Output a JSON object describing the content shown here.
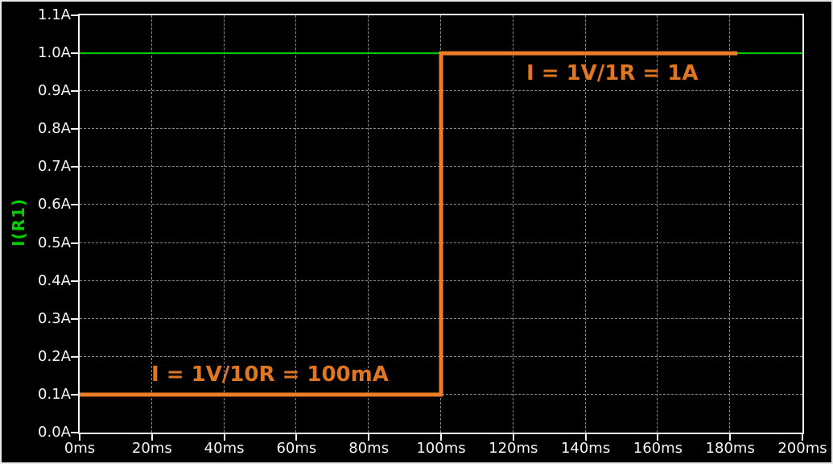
{
  "window": {
    "description": "simulation-waveform-plot"
  },
  "colors": {
    "background": "#000000",
    "outer_border": "#e9e9e9",
    "axis": "#f2f2f2",
    "grid": "#8a8a8a",
    "tick_text": "#f5f5f5",
    "ylabel_text": "#00cf00",
    "annotation_text": "#df7621"
  },
  "chart_data": {
    "type": "line",
    "title": "",
    "xlabel": "",
    "ylabel": "I(R1)",
    "x_unit": "ms",
    "y_unit": "A",
    "xlim": [
      0,
      200
    ],
    "ylim": [
      0,
      1.1
    ],
    "grid": "dashed",
    "legend_position": "none",
    "x_ticks": {
      "values": [
        0,
        20,
        40,
        60,
        80,
        100,
        120,
        140,
        160,
        180,
        200
      ],
      "labels": [
        "0ms",
        "20ms",
        "40ms",
        "60ms",
        "80ms",
        "100ms",
        "120ms",
        "140ms",
        "160ms",
        "180ms",
        "200ms"
      ]
    },
    "y_ticks": {
      "values": [
        0.0,
        0.1,
        0.2,
        0.3,
        0.4,
        0.5,
        0.6,
        0.7,
        0.8,
        0.9,
        1.0,
        1.1
      ],
      "labels": [
        "0.0A",
        "0.1A",
        "0.2A",
        "0.3A",
        "0.4A",
        "0.5A",
        "0.6A",
        "0.7A",
        "0.8A",
        "0.9A",
        "1.0A",
        "1.1A"
      ]
    },
    "series": [
      {
        "name": "1A-reference-line",
        "color": "#00cf00",
        "width": 2,
        "points": [
          [
            0,
            1.0
          ],
          [
            200,
            1.0
          ]
        ]
      },
      {
        "name": "I(R1)-current-trace",
        "color": "#ee7d2a",
        "width": 5,
        "points": [
          [
            0,
            0.1
          ],
          [
            100,
            0.1
          ],
          [
            100,
            1.0
          ],
          [
            182,
            1.0
          ]
        ]
      }
    ],
    "annotations": [
      {
        "text": "I = 1V/10R = 100mA",
        "region": "before-step"
      },
      {
        "text": "I = 1V/1R = 1A",
        "region": "after-step"
      }
    ]
  }
}
